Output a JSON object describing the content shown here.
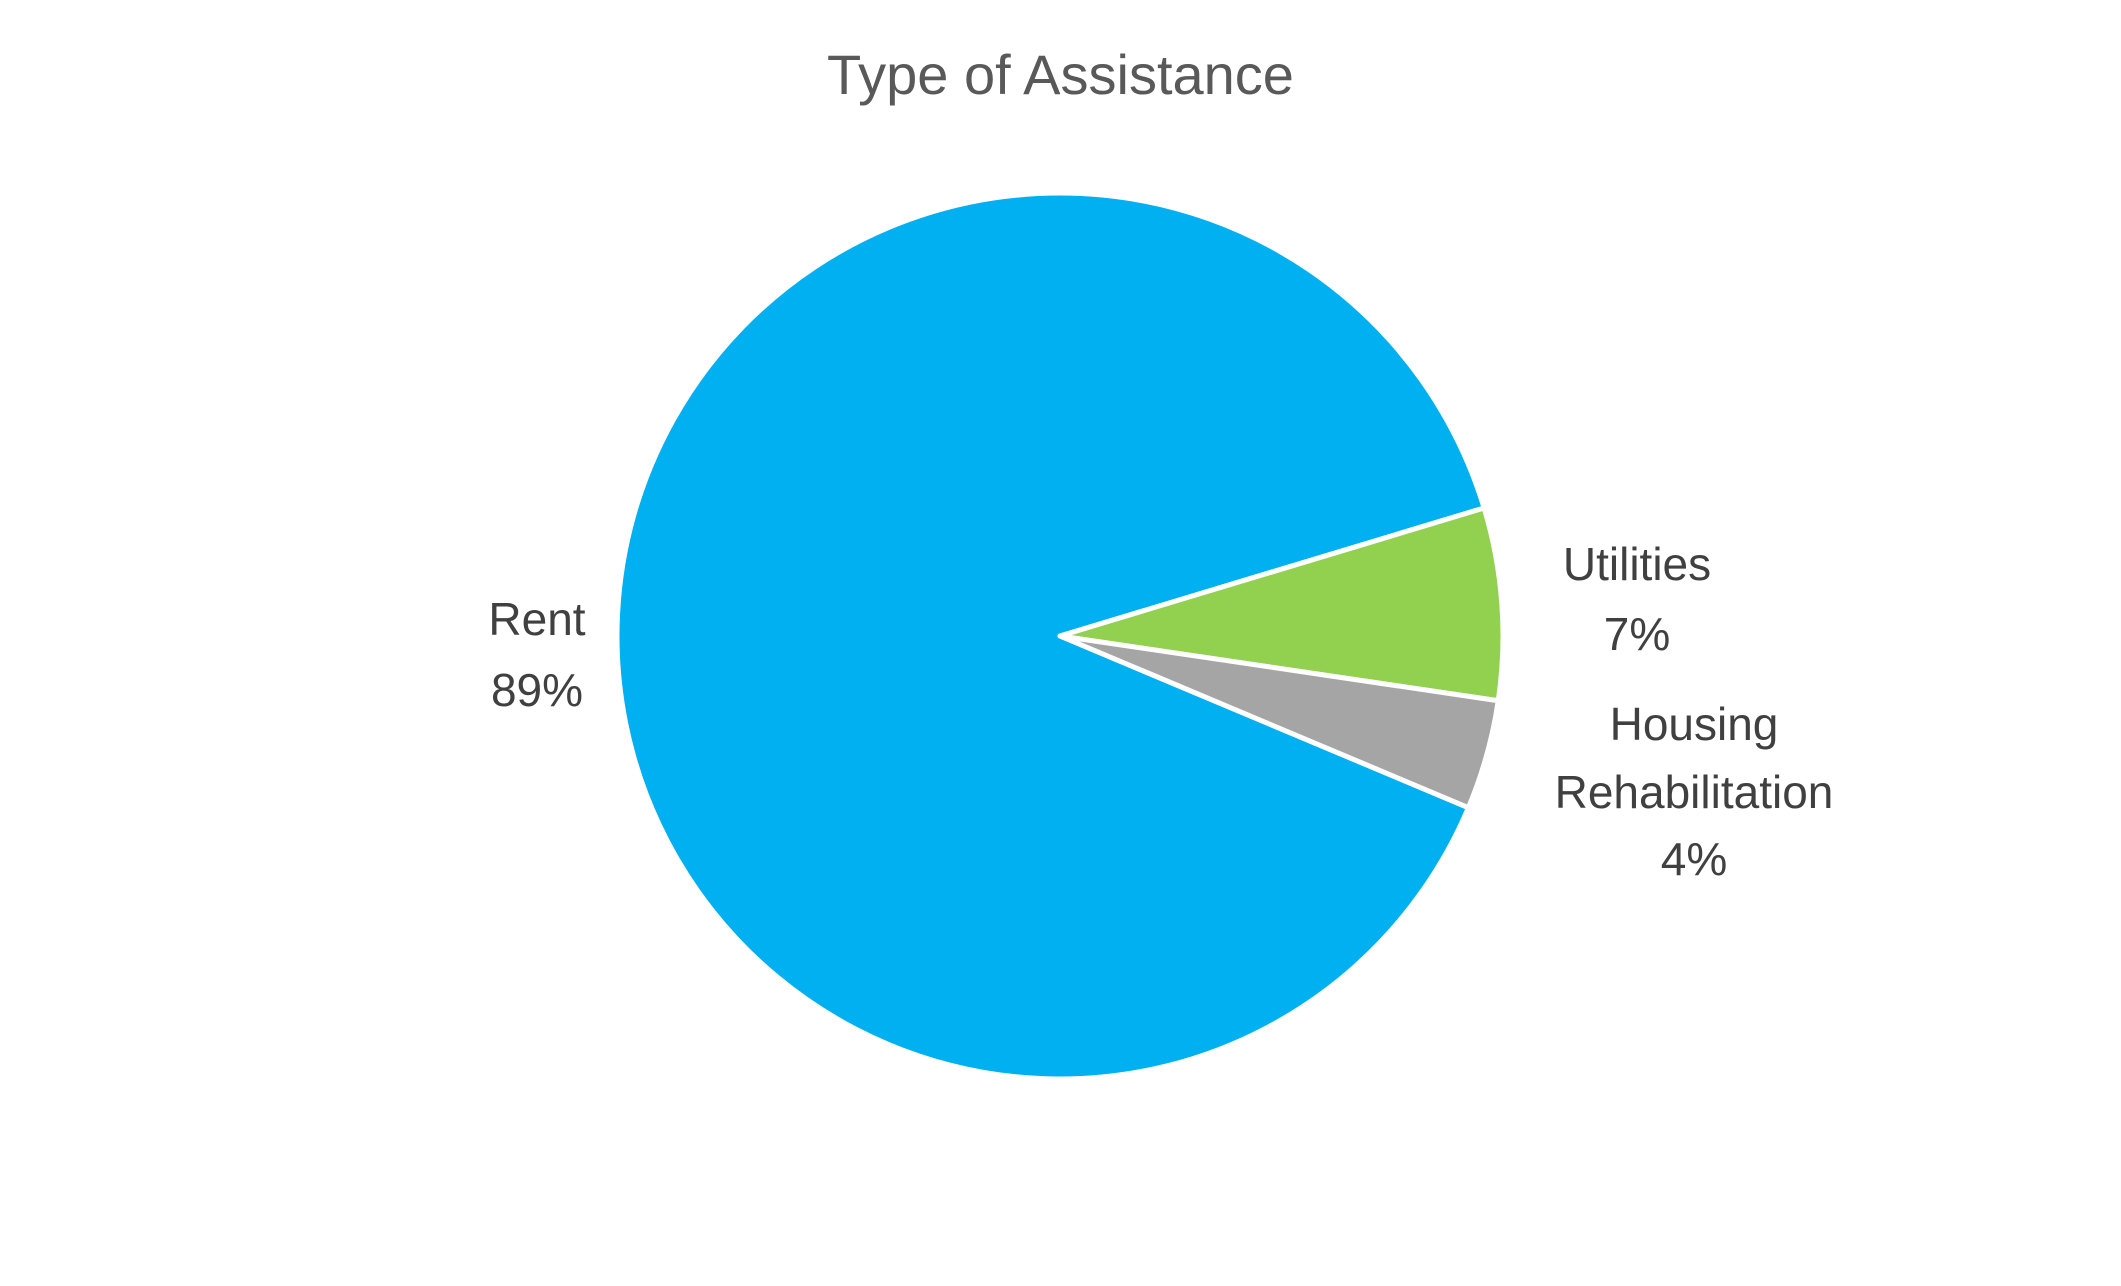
{
  "chart_data": {
    "type": "pie",
    "title": "Type of Assistance",
    "slices": [
      {
        "label": "Rent",
        "value": 89,
        "value_label": "89%",
        "color": "#00B0F0"
      },
      {
        "label": "Utilities",
        "value": 7,
        "value_label": "7%",
        "color": "#92D050"
      },
      {
        "label": "Housing Rehabilitation",
        "label_lines": [
          "Housing",
          "Rehabilitation"
        ],
        "value": 4,
        "value_label": "4%",
        "color": "#A5A5A5"
      }
    ],
    "legend": "none",
    "data_labels": "outside"
  }
}
